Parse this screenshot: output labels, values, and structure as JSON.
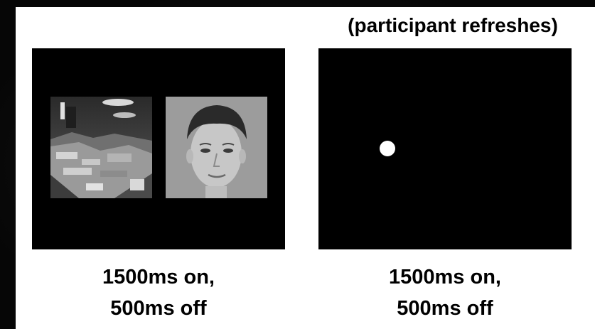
{
  "header_note": "(participant refreshes)",
  "panels": [
    {
      "image_1": "scene-photo",
      "image_2": "face-photo",
      "caption_line1": "1500ms on,",
      "caption_line2": "500ms off"
    },
    {
      "marker": "fixation-dot",
      "caption_line1": "1500ms on,",
      "caption_line2": "500ms off"
    }
  ],
  "colors": {
    "panel_bg": "#000000",
    "canvas_bg": "#ffffff",
    "dot": "#ffffff",
    "text": "#000000"
  }
}
